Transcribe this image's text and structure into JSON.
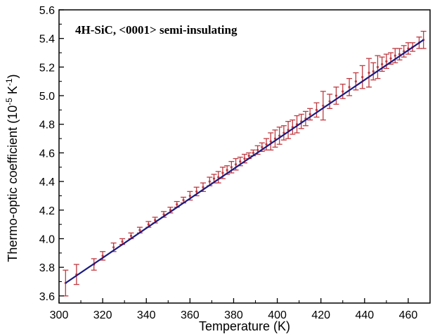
{
  "chart_data": {
    "type": "scatter",
    "annotation": "4H-SiC, <0001> semi-insulating",
    "xlabel": "Temperature (K)",
    "ylabel": {
      "prefix": "Thermo-optic coefficient (10",
      "exp1": "-5",
      "mid": " K",
      "exp2": "-1",
      "suffix": ")"
    },
    "xlim": [
      300,
      470
    ],
    "ylim": [
      3.55,
      5.6
    ],
    "x_ticks": [
      "300",
      "320",
      "340",
      "360",
      "380",
      "400",
      "420",
      "440",
      "460"
    ],
    "y_ticks": [
      "3.6",
      "3.8",
      "4.0",
      "4.2",
      "4.4",
      "4.6",
      "4.8",
      "5.0",
      "5.2",
      "5.4",
      "5.6"
    ],
    "grid": false,
    "legend": "none",
    "colors": {
      "error_bars": "#c0393f",
      "fit_line": "#1a1a80",
      "axes": "#000000"
    },
    "fit_line": {
      "x": [
        303,
        467
      ],
      "y": [
        3.69,
        5.39
      ]
    },
    "series": [
      {
        "x": [
          303,
          308,
          316,
          320,
          325,
          329,
          333,
          337,
          341,
          344,
          348,
          351,
          354,
          357,
          360,
          363,
          366,
          369,
          371,
          373,
          375,
          377,
          379,
          381,
          383,
          385,
          387,
          389,
          391,
          393,
          395,
          397,
          399,
          401,
          403,
          405,
          407,
          409,
          411,
          413,
          415,
          418,
          421,
          424,
          427,
          430,
          433,
          436,
          439,
          442,
          444,
          446,
          448,
          450,
          452,
          454,
          456,
          458,
          460,
          462,
          465,
          467
        ],
        "y": [
          3.69,
          3.75,
          3.82,
          3.88,
          3.94,
          3.98,
          4.02,
          4.06,
          4.1,
          4.13,
          4.17,
          4.2,
          4.24,
          4.27,
          4.3,
          4.33,
          4.36,
          4.4,
          4.42,
          4.43,
          4.46,
          4.48,
          4.5,
          4.52,
          4.54,
          4.56,
          4.58,
          4.6,
          4.62,
          4.64,
          4.66,
          4.68,
          4.7,
          4.72,
          4.74,
          4.76,
          4.78,
          4.8,
          4.82,
          4.84,
          4.87,
          4.9,
          4.93,
          4.96,
          5.0,
          5.03,
          5.06,
          5.1,
          5.13,
          5.16,
          5.17,
          5.2,
          5.22,
          5.24,
          5.26,
          5.28,
          5.29,
          5.31,
          5.33,
          5.34,
          5.37,
          5.39
        ],
        "err": [
          0.09,
          0.07,
          0.04,
          0.03,
          0.03,
          0.02,
          0.02,
          0.02,
          0.02,
          0.02,
          0.02,
          0.02,
          0.02,
          0.02,
          0.03,
          0.03,
          0.03,
          0.03,
          0.03,
          0.04,
          0.04,
          0.03,
          0.04,
          0.04,
          0.03,
          0.03,
          0.02,
          0.02,
          0.03,
          0.03,
          0.04,
          0.06,
          0.06,
          0.06,
          0.05,
          0.06,
          0.05,
          0.06,
          0.05,
          0.05,
          0.04,
          0.05,
          0.1,
          0.05,
          0.06,
          0.05,
          0.06,
          0.06,
          0.08,
          0.1,
          0.06,
          0.08,
          0.05,
          0.05,
          0.04,
          0.05,
          0.04,
          0.04,
          0.04,
          0.03,
          0.04,
          0.06
        ]
      }
    ]
  }
}
